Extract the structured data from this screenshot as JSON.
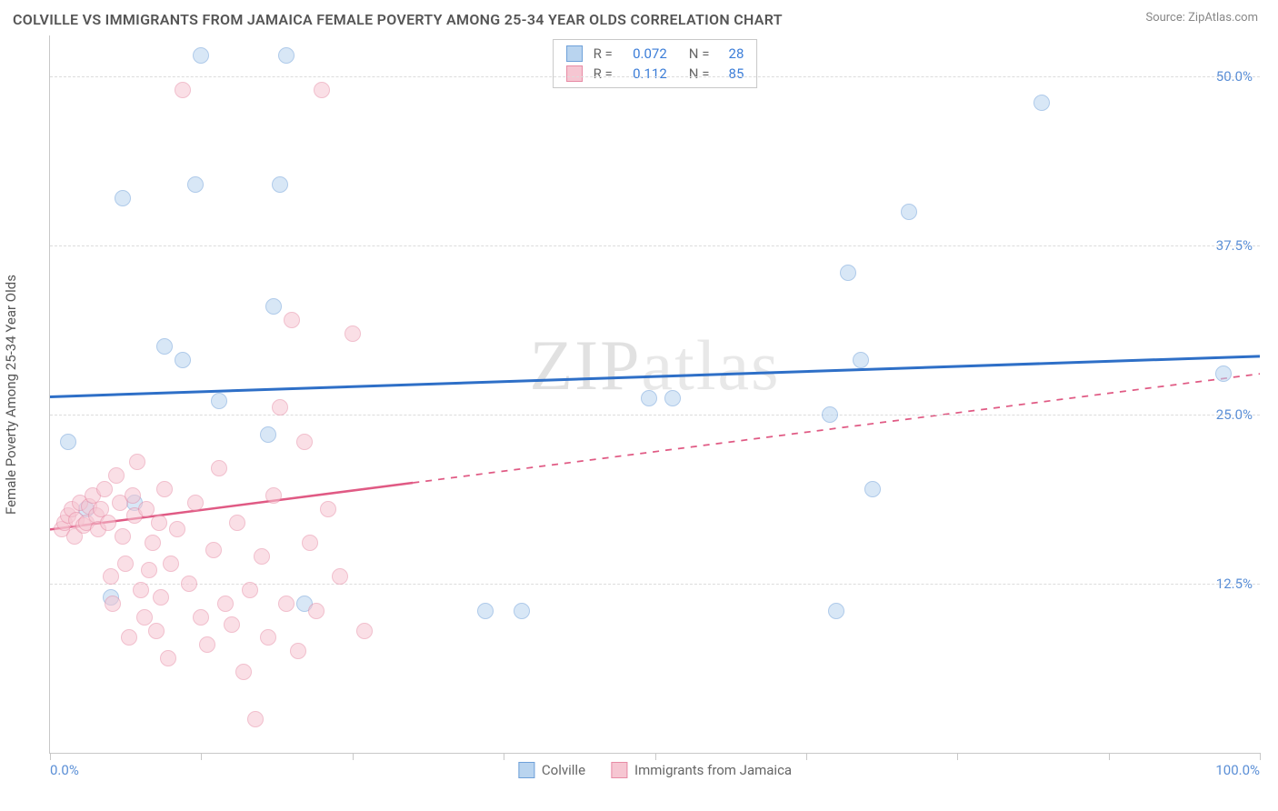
{
  "title": "COLVILLE VS IMMIGRANTS FROM JAMAICA FEMALE POVERTY AMONG 25-34 YEAR OLDS CORRELATION CHART",
  "source": "Source: ZipAtlas.com",
  "ylabel": "Female Poverty Among 25-34 Year Olds",
  "watermark": {
    "a": "ZIP",
    "b": "atlas"
  },
  "chart": {
    "type": "scatter",
    "background_color": "#ffffff",
    "grid_color": "#dcdcdc",
    "axis_color": "#c8c8c8",
    "label_fontsize": 15,
    "title_fontsize": 16,
    "xlim": [
      0,
      100
    ],
    "ylim": [
      0,
      53
    ],
    "xticks": [
      0,
      12.5,
      25,
      37.5,
      50,
      62.5,
      75,
      87.5,
      100
    ],
    "xtick_labels": {
      "0": "0.0%",
      "100": "100.0%"
    },
    "yticks": [
      12.5,
      25,
      37.5,
      50
    ],
    "ytick_labels": {
      "12.5": "12.5%",
      "25": "25.0%",
      "37.5": "37.5%",
      "50": "50.0%"
    },
    "series": [
      {
        "name": "Colville",
        "color_fill": "#b9d4ef",
        "color_stroke": "#6ea0d9",
        "marker_size": 18,
        "fill_opacity": 0.55,
        "R": "0.072",
        "N": "28",
        "trend": {
          "y_at_x0": 26.3,
          "y_at_x100": 29.3,
          "line_color": "#2e6fc7",
          "line_width": 3,
          "dash_after_x": 100
        },
        "points": [
          [
            1.5,
            23.0
          ],
          [
            3.0,
            18.0
          ],
          [
            5.0,
            11.5
          ],
          [
            6.0,
            41.0
          ],
          [
            7.0,
            18.5
          ],
          [
            9.5,
            30.0
          ],
          [
            11.0,
            29.0
          ],
          [
            12.0,
            42.0
          ],
          [
            12.5,
            51.5
          ],
          [
            14.0,
            26.0
          ],
          [
            18.0,
            23.5
          ],
          [
            18.5,
            33.0
          ],
          [
            19.0,
            42.0
          ],
          [
            19.5,
            51.5
          ],
          [
            21.0,
            11.0
          ],
          [
            36.0,
            10.5
          ],
          [
            39.0,
            10.5
          ],
          [
            49.5,
            26.2
          ],
          [
            51.5,
            26.2
          ],
          [
            65.0,
            10.5
          ],
          [
            64.5,
            25.0
          ],
          [
            66.0,
            35.5
          ],
          [
            67.0,
            29.0
          ],
          [
            68.0,
            19.5
          ],
          [
            71.0,
            40.0
          ],
          [
            82.0,
            48.0
          ],
          [
            97.0,
            28.0
          ]
        ]
      },
      {
        "name": "Immigrants from Jamaica",
        "color_fill": "#f6c6d2",
        "color_stroke": "#e78ba5",
        "marker_size": 18,
        "fill_opacity": 0.55,
        "R": "0.112",
        "N": "85",
        "trend": {
          "y_at_x0": 16.5,
          "y_at_x100": 28.0,
          "line_color": "#e05a84",
          "line_width": 2.5,
          "dash_after_x": 30
        },
        "points": [
          [
            1.0,
            16.5
          ],
          [
            1.2,
            17.0
          ],
          [
            1.5,
            17.5
          ],
          [
            1.8,
            18.0
          ],
          [
            2.0,
            16.0
          ],
          [
            2.2,
            17.2
          ],
          [
            2.5,
            18.5
          ],
          [
            2.8,
            16.8
          ],
          [
            3.0,
            17.0
          ],
          [
            3.2,
            18.2
          ],
          [
            3.5,
            19.0
          ],
          [
            3.8,
            17.5
          ],
          [
            4.0,
            16.5
          ],
          [
            4.2,
            18.0
          ],
          [
            4.5,
            19.5
          ],
          [
            4.8,
            17.0
          ],
          [
            5.0,
            13.0
          ],
          [
            5.2,
            11.0
          ],
          [
            5.5,
            20.5
          ],
          [
            5.8,
            18.5
          ],
          [
            6.0,
            16.0
          ],
          [
            6.2,
            14.0
          ],
          [
            6.5,
            8.5
          ],
          [
            6.8,
            19.0
          ],
          [
            7.0,
            17.5
          ],
          [
            7.2,
            21.5
          ],
          [
            7.5,
            12.0
          ],
          [
            7.8,
            10.0
          ],
          [
            8.0,
            18.0
          ],
          [
            8.2,
            13.5
          ],
          [
            8.5,
            15.5
          ],
          [
            8.8,
            9.0
          ],
          [
            9.0,
            17.0
          ],
          [
            9.2,
            11.5
          ],
          [
            9.5,
            19.5
          ],
          [
            9.8,
            7.0
          ],
          [
            10.0,
            14.0
          ],
          [
            10.5,
            16.5
          ],
          [
            11.0,
            49.0
          ],
          [
            11.5,
            12.5
          ],
          [
            12.0,
            18.5
          ],
          [
            12.5,
            10.0
          ],
          [
            13.0,
            8.0
          ],
          [
            13.5,
            15.0
          ],
          [
            14.0,
            21.0
          ],
          [
            14.5,
            11.0
          ],
          [
            15.0,
            9.5
          ],
          [
            15.5,
            17.0
          ],
          [
            16.0,
            6.0
          ],
          [
            16.5,
            12.0
          ],
          [
            17.0,
            2.5
          ],
          [
            17.5,
            14.5
          ],
          [
            18.0,
            8.5
          ],
          [
            18.5,
            19.0
          ],
          [
            19.0,
            25.5
          ],
          [
            19.5,
            11.0
          ],
          [
            20.0,
            32.0
          ],
          [
            20.5,
            7.5
          ],
          [
            21.0,
            23.0
          ],
          [
            21.5,
            15.5
          ],
          [
            22.0,
            10.5
          ],
          [
            22.5,
            49.0
          ],
          [
            23.0,
            18.0
          ],
          [
            24.0,
            13.0
          ],
          [
            25.0,
            31.0
          ],
          [
            26.0,
            9.0
          ]
        ]
      }
    ]
  },
  "legend_bottom": [
    {
      "label": "Colville",
      "fill": "#b9d4ef",
      "stroke": "#6ea0d9"
    },
    {
      "label": "Immigrants from Jamaica",
      "fill": "#f6c6d2",
      "stroke": "#e78ba5"
    }
  ]
}
